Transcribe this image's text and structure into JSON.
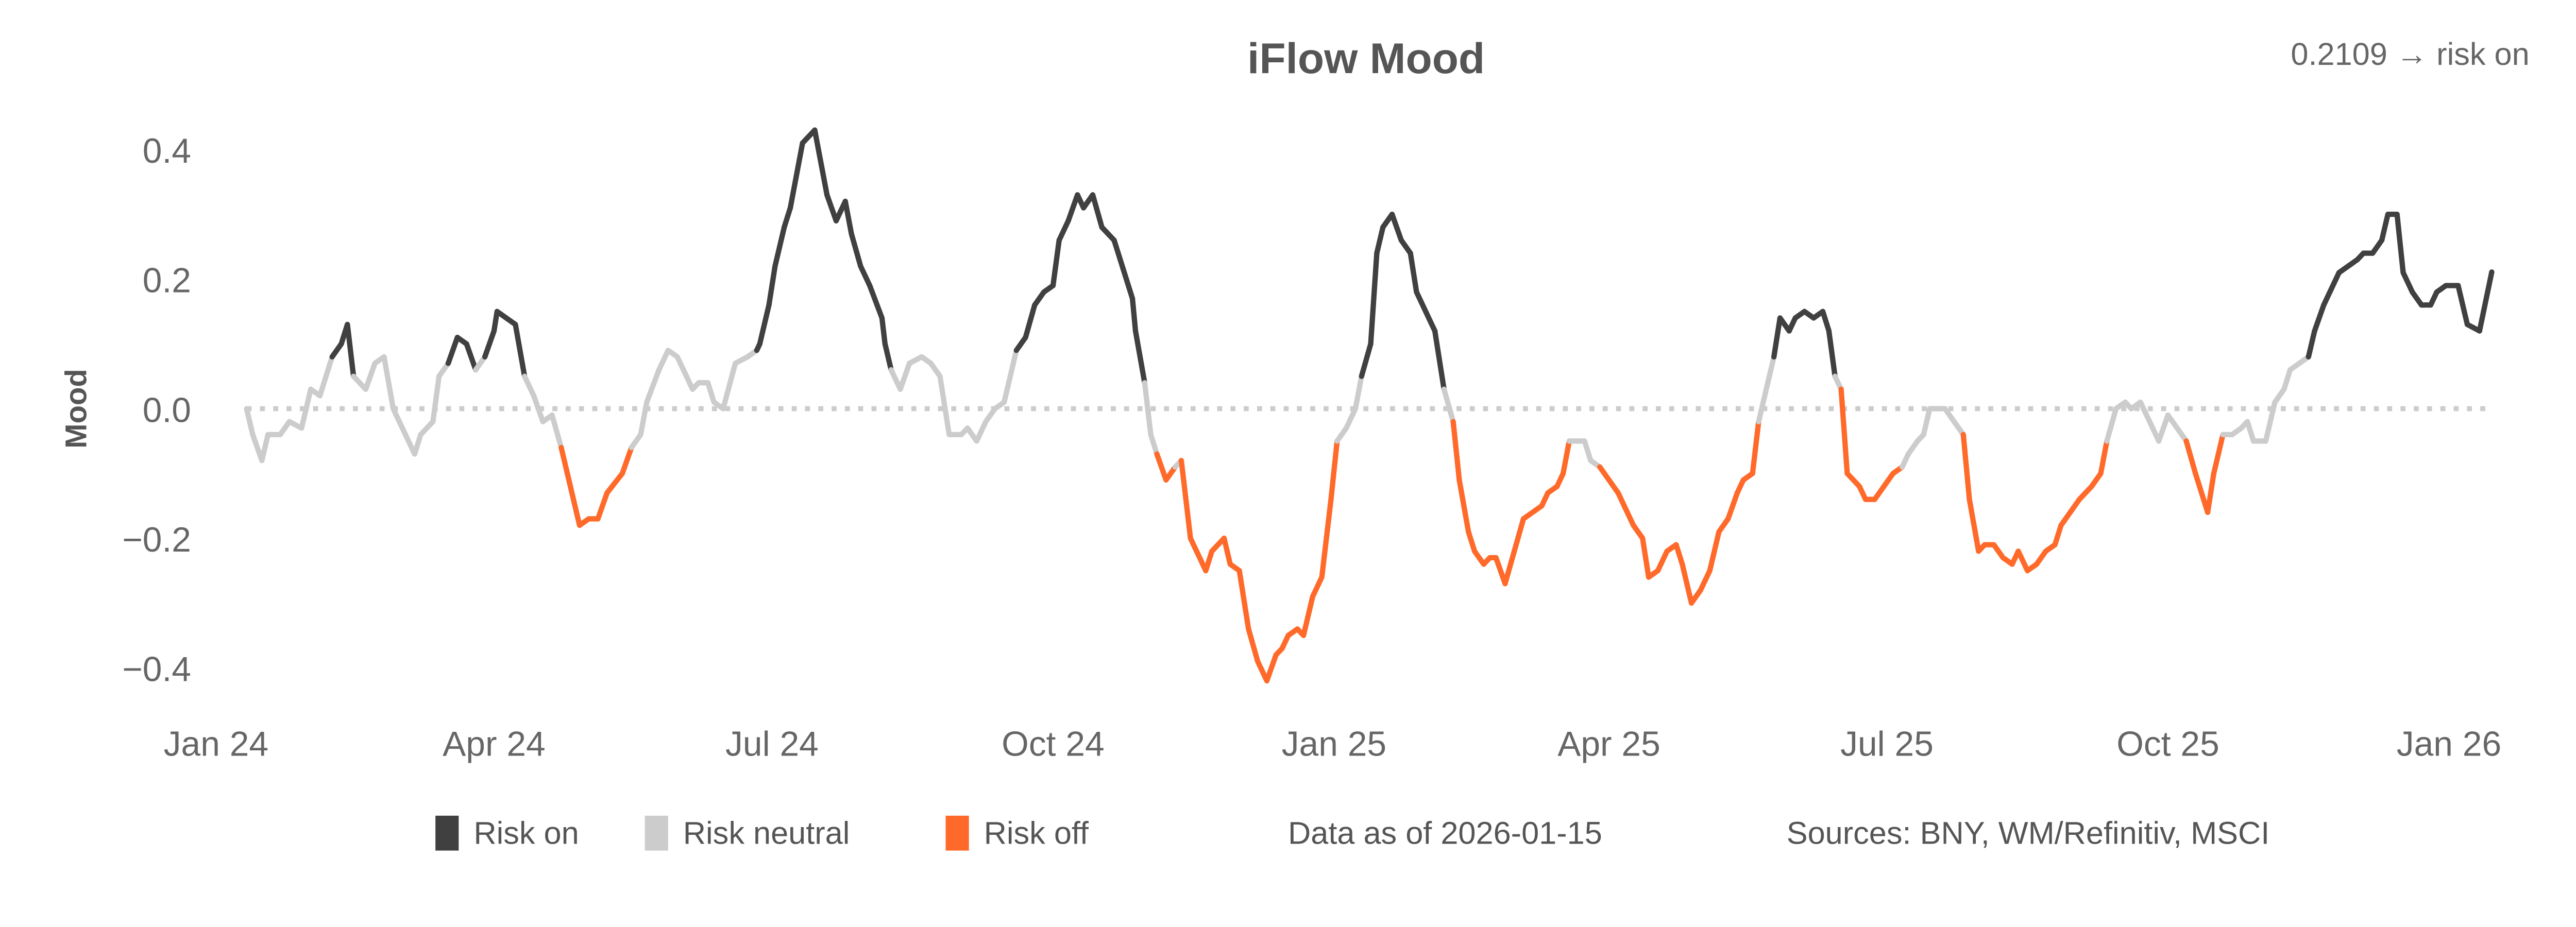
{
  "chart_data": {
    "type": "line",
    "title": "iFlow Mood",
    "annotation": "0.2109 → risk on",
    "ylabel": "Mood",
    "xlabel": "",
    "ylim": [
      -0.4,
      0.4
    ],
    "y_ticks": [
      0.4,
      0.2,
      0.0,
      -0.2,
      -0.4
    ],
    "y_tick_labels": [
      "0.4",
      "0.2",
      "0.0",
      "−0.2",
      "−0.4"
    ],
    "x_range": [
      "2024-01-01",
      "2026-01-15"
    ],
    "x_ticks": [
      "2024-01-01",
      "2024-04-01",
      "2024-07-01",
      "2024-10-01",
      "2025-01-01",
      "2025-04-01",
      "2025-07-01",
      "2025-10-01",
      "2026-01-01"
    ],
    "x_tick_labels": [
      "Jan 24",
      "Apr 24",
      "Jul 24",
      "Oct 24",
      "Jan 25",
      "Apr 25",
      "Jul 25",
      "Oct 25",
      "Jan 26"
    ],
    "reference_line": {
      "y": 0.0,
      "style": "dotted",
      "color": "#cccccc"
    },
    "grid": false,
    "legend_placement": "bottom",
    "legend": [
      {
        "label": "Risk on",
        "color": "#404040"
      },
      {
        "label": "Risk neutral",
        "color": "#cccccc"
      },
      {
        "label": "Risk off",
        "color": "#ff6a2b"
      }
    ],
    "regime_thresholds": {
      "risk_off_at_or_below": -0.1,
      "risk_on_at_or_above": 0.1
    },
    "footer": {
      "data_as_of": "Data as of 2026-01-15",
      "sources": "Sources:  BNY, WM/Refinitiv, MSCI"
    },
    "series": [
      {
        "dates": [
          "2024-01-11",
          "2024-01-13",
          "2024-01-16",
          "2024-01-18",
          "2024-01-22",
          "2024-01-25",
          "2024-01-29",
          "2024-02-01",
          "2024-02-04",
          "2024-02-08",
          "2024-02-11",
          "2024-02-13",
          "2024-02-15",
          "2024-02-19",
          "2024-02-22",
          "2024-02-25",
          "2024-02-28",
          "2024-03-03",
          "2024-03-06",
          "2024-03-08",
          "2024-03-12",
          "2024-03-14",
          "2024-03-17",
          "2024-03-20",
          "2024-03-23",
          "2024-03-26",
          "2024-03-29",
          "2024-04-01",
          "2024-04-02",
          "2024-04-05",
          "2024-04-08",
          "2024-04-11",
          "2024-04-14",
          "2024-04-17",
          "2024-04-20",
          "2024-04-23",
          "2024-04-26",
          "2024-04-29",
          "2024-05-02",
          "2024-05-05",
          "2024-05-08",
          "2024-05-13",
          "2024-05-16",
          "2024-05-19",
          "2024-05-21",
          "2024-05-25",
          "2024-05-28",
          "2024-05-31",
          "2024-06-02",
          "2024-06-05",
          "2024-06-07",
          "2024-06-10",
          "2024-06-12",
          "2024-06-15",
          "2024-06-19",
          "2024-06-23",
          "2024-06-26",
          "2024-06-27",
          "2024-06-30",
          "2024-07-02",
          "2024-07-05",
          "2024-07-07",
          "2024-07-09",
          "2024-07-11",
          "2024-07-15",
          "2024-07-19",
          "2024-07-22",
          "2024-07-25",
          "2024-07-27",
          "2024-07-30",
          "2024-08-02",
          "2024-08-06",
          "2024-08-07",
          "2024-08-09",
          "2024-08-12",
          "2024-08-15",
          "2024-08-19",
          "2024-08-22",
          "2024-08-25",
          "2024-08-28",
          "2024-09-01",
          "2024-09-03",
          "2024-09-06",
          "2024-09-09",
          "2024-09-12",
          "2024-09-15",
          "2024-09-19",
          "2024-09-22",
          "2024-09-25",
          "2024-09-28",
          "2024-10-01",
          "2024-10-03",
          "2024-10-06",
          "2024-10-09",
          "2024-10-11",
          "2024-10-14",
          "2024-10-17",
          "2024-10-21",
          "2024-10-23",
          "2024-10-27",
          "2024-10-28",
          "2024-10-31",
          "2024-11-02",
          "2024-11-04",
          "2024-11-07",
          "2024-11-10",
          "2024-11-12",
          "2024-11-15",
          "2024-11-17",
          "2024-11-20",
          "2024-11-22",
          "2024-11-26",
          "2024-11-28",
          "2024-12-01",
          "2024-12-04",
          "2024-12-07",
          "2024-12-10",
          "2024-12-13",
          "2024-12-15",
          "2024-12-17",
          "2024-12-20",
          "2024-12-22",
          "2024-12-25",
          "2024-12-28",
          "2024-12-31",
          "2025-01-02",
          "2025-01-05",
          "2025-01-08",
          "2025-01-10",
          "2025-01-13",
          "2025-01-15",
          "2025-01-17",
          "2025-01-20",
          "2025-01-23",
          "2025-01-26",
          "2025-01-28",
          "2025-01-31",
          "2025-02-03",
          "2025-02-06",
          "2025-02-09",
          "2025-02-11",
          "2025-02-14",
          "2025-02-16",
          "2025-02-19",
          "2025-02-21",
          "2025-02-23",
          "2025-02-26",
          "2025-03-01",
          "2025-03-04",
          "2025-03-07",
          "2025-03-10",
          "2025-03-12",
          "2025-03-15",
          "2025-03-17",
          "2025-03-19",
          "2025-03-22",
          "2025-03-24",
          "2025-03-26",
          "2025-03-29",
          "2025-04-01",
          "2025-04-04",
          "2025-04-06",
          "2025-04-09",
          "2025-04-12",
          "2025-04-14",
          "2025-04-17",
          "2025-04-20",
          "2025-04-23",
          "2025-04-25",
          "2025-04-28",
          "2025-05-01",
          "2025-05-04",
          "2025-05-07",
          "2025-05-10",
          "2025-05-13",
          "2025-05-15",
          "2025-05-18",
          "2025-05-20",
          "2025-05-23",
          "2025-05-25",
          "2025-05-27",
          "2025-05-30",
          "2025-06-01",
          "2025-06-04",
          "2025-06-07",
          "2025-06-10",
          "2025-06-12",
          "2025-06-14",
          "2025-06-16",
          "2025-06-18",
          "2025-06-22",
          "2025-06-24",
          "2025-06-27",
          "2025-06-30",
          "2025-07-03",
          "2025-07-06",
          "2025-07-08",
          "2025-07-11",
          "2025-07-13",
          "2025-07-15",
          "2025-07-18",
          "2025-07-20",
          "2025-07-23",
          "2025-07-26",
          "2025-07-28",
          "2025-07-31",
          "2025-08-02",
          "2025-08-05",
          "2025-08-08",
          "2025-08-11",
          "2025-08-13",
          "2025-08-16",
          "2025-08-19",
          "2025-08-22",
          "2025-08-25",
          "2025-08-27",
          "2025-08-30",
          "2025-09-02",
          "2025-09-06",
          "2025-09-09",
          "2025-09-11",
          "2025-09-14",
          "2025-09-17",
          "2025-09-19",
          "2025-09-22",
          "2025-09-25",
          "2025-09-28",
          "2025-10-01",
          "2025-10-04",
          "2025-10-07",
          "2025-10-10",
          "2025-10-12",
          "2025-10-14",
          "2025-10-16",
          "2025-10-19",
          "2025-10-22",
          "2025-10-25",
          "2025-10-27",
          "2025-10-29",
          "2025-11-02",
          "2025-11-05",
          "2025-11-08",
          "2025-11-10",
          "2025-11-13",
          "2025-11-16",
          "2025-11-18",
          "2025-11-21",
          "2025-11-23",
          "2025-11-26",
          "2025-11-29",
          "2025-12-02",
          "2025-12-04",
          "2025-12-07",
          "2025-12-10",
          "2025-12-12",
          "2025-12-15",
          "2025-12-17",
          "2025-12-20",
          "2025-12-23",
          "2025-12-26",
          "2025-12-28",
          "2025-12-31",
          "2026-01-04",
          "2026-01-07",
          "2026-01-11",
          "2026-01-15"
        ],
        "values": [
          0.0,
          -0.04,
          -0.08,
          -0.04,
          -0.04,
          -0.02,
          -0.03,
          0.03,
          0.02,
          0.08,
          0.1,
          0.13,
          0.05,
          0.03,
          0.07,
          0.08,
          0.0,
          -0.04,
          -0.07,
          -0.04,
          -0.02,
          0.05,
          0.07,
          0.11,
          0.1,
          0.06,
          0.08,
          0.12,
          0.15,
          0.14,
          0.13,
          0.05,
          0.02,
          -0.02,
          -0.01,
          -0.06,
          -0.12,
          -0.18,
          -0.17,
          -0.17,
          -0.13,
          -0.1,
          -0.06,
          -0.04,
          0.01,
          0.06,
          0.09,
          0.08,
          0.06,
          0.03,
          0.04,
          0.04,
          0.01,
          0.0,
          0.07,
          0.08,
          0.09,
          0.1,
          0.16,
          0.22,
          0.28,
          0.31,
          0.36,
          0.41,
          0.43,
          0.33,
          0.29,
          0.32,
          0.27,
          0.22,
          0.19,
          0.14,
          0.1,
          0.06,
          0.03,
          0.07,
          0.08,
          0.07,
          0.05,
          -0.04,
          -0.04,
          -0.03,
          -0.05,
          -0.02,
          0.0,
          0.01,
          0.09,
          0.11,
          0.16,
          0.18,
          0.19,
          0.26,
          0.29,
          0.33,
          0.31,
          0.33,
          0.28,
          0.26,
          0.23,
          0.17,
          0.12,
          0.04,
          -0.04,
          -0.07,
          -0.11,
          -0.09,
          -0.08,
          -0.2,
          -0.22,
          -0.25,
          -0.22,
          -0.2,
          -0.24,
          -0.25,
          -0.34,
          -0.39,
          -0.42,
          -0.38,
          -0.37,
          -0.35,
          -0.34,
          -0.35,
          -0.29,
          -0.26,
          -0.14,
          -0.05,
          -0.03,
          0.0,
          0.05,
          0.1,
          0.24,
          0.28,
          0.3,
          0.26,
          0.24,
          0.18,
          0.15,
          0.12,
          0.03,
          -0.02,
          -0.11,
          -0.19,
          -0.22,
          -0.24,
          -0.23,
          -0.23,
          -0.27,
          -0.22,
          -0.17,
          -0.16,
          -0.15,
          -0.13,
          -0.12,
          -0.1,
          -0.05,
          -0.05,
          -0.05,
          -0.08,
          -0.09,
          -0.11,
          -0.13,
          -0.15,
          -0.18,
          -0.2,
          -0.26,
          -0.25,
          -0.22,
          -0.21,
          -0.24,
          -0.3,
          -0.28,
          -0.25,
          -0.19,
          -0.17,
          -0.13,
          -0.11,
          -0.1,
          -0.02,
          0.04,
          0.08,
          0.14,
          0.12,
          0.14,
          0.15,
          0.14,
          0.15,
          0.12,
          0.05,
          0.03,
          -0.1,
          -0.12,
          -0.14,
          -0.14,
          -0.12,
          -0.1,
          -0.09,
          -0.07,
          -0.05,
          -0.04,
          0.0,
          0.0,
          0.0,
          -0.02,
          -0.04,
          -0.14,
          -0.22,
          -0.21,
          -0.21,
          -0.23,
          -0.24,
          -0.22,
          -0.25,
          -0.24,
          -0.22,
          -0.21,
          -0.18,
          -0.16,
          -0.14,
          -0.12,
          -0.1,
          -0.05,
          0.0,
          0.01,
          0.0,
          0.01,
          -0.02,
          -0.05,
          -0.01,
          -0.03,
          -0.05,
          -0.1,
          -0.13,
          -0.16,
          -0.1,
          -0.04,
          -0.04,
          -0.03,
          -0.02,
          -0.05,
          -0.05,
          0.01,
          0.03,
          0.06,
          0.07,
          0.08,
          0.12,
          0.16,
          0.18,
          0.21,
          0.22,
          0.23,
          0.24,
          0.24,
          0.26,
          0.3,
          0.3,
          0.21,
          0.18,
          0.16,
          0.16,
          0.18,
          0.19,
          0.19,
          0.13,
          0.12,
          0.2109
        ]
      }
    ]
  }
}
